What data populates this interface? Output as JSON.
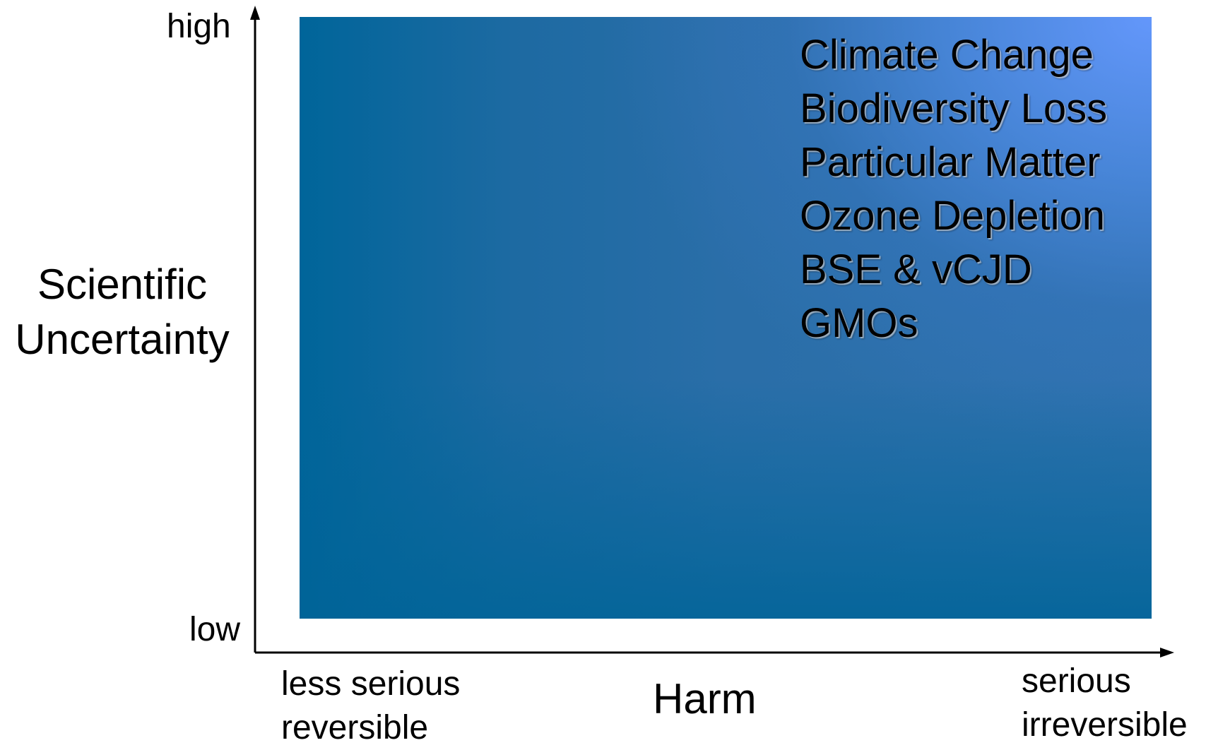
{
  "y_axis": {
    "label_lines": [
      "Scientific",
      "Uncertainty"
    ],
    "high_label": "high",
    "low_label": "low"
  },
  "x_axis": {
    "label": "Harm",
    "left_lines": [
      "less serious",
      "reversible"
    ],
    "right_lines": [
      "serious",
      "irreversible"
    ]
  },
  "issues": [
    "Climate Change",
    "Biodiversity Loss",
    "Particular Matter",
    "Ozone Depletion",
    "BSE & vCJD",
    "GMOs"
  ],
  "colors": {
    "field_dark": "#00659a",
    "field_light": "#6699ff",
    "axis": "#000000"
  }
}
